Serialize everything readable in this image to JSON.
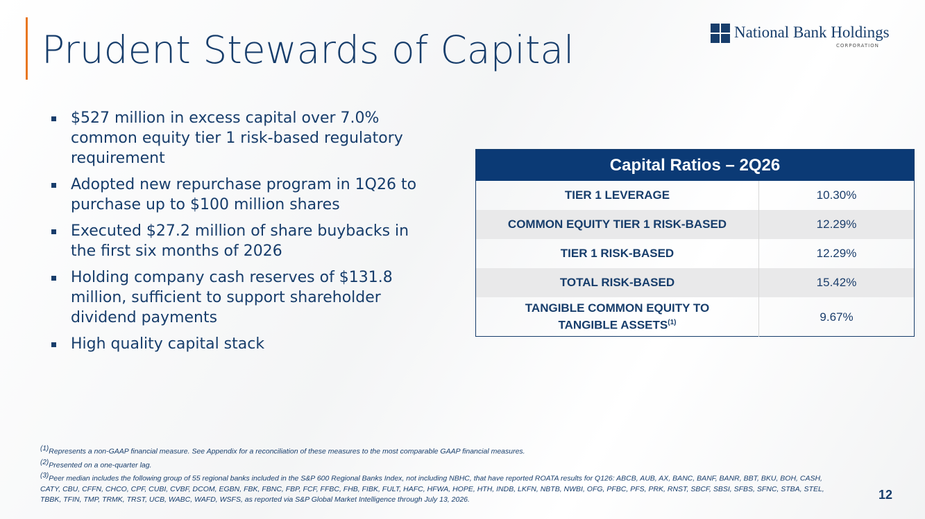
{
  "header": {
    "title": "Prudent Stewards of Capital"
  },
  "logo": {
    "name": "National Bank Holdings",
    "sub": "CORPORATION"
  },
  "bullets": [
    "$527 million in excess capital over 7.0% common equity tier 1 risk-based regulatory requirement",
    "Adopted new repurchase program in 1Q26 to purchase up to $100 million shares",
    "Executed $27.2 million of share buybacks in the first six months of 2026",
    "Holding company cash reserves of $131.8 million, sufficient to support shareholder dividend payments",
    "High quality capital stack"
  ],
  "table": {
    "title": "Capital Ratios – 2Q26",
    "rows": [
      {
        "label": "TIER 1 LEVERAGE",
        "value": "10.30%"
      },
      {
        "label": "COMMON EQUITY TIER 1 RISK-BASED",
        "value": "12.29%"
      },
      {
        "label": "TIER 1 RISK-BASED",
        "value": "12.29%"
      },
      {
        "label": "TOTAL RISK-BASED",
        "value": "15.42%"
      },
      {
        "label": "TANGIBLE COMMON EQUITY TO TANGIBLE ASSETS",
        "note": "(1)",
        "value": "9.67%"
      }
    ]
  },
  "footnotes": [
    {
      "marker": "(1)",
      "text": "Represents a non-GAAP financial measure.  See Appendix for a reconciliation of these measures to the most comparable GAAP financial measures."
    },
    {
      "marker": "(2)",
      "text": "Presented on a one-quarter lag."
    },
    {
      "marker": "(3)",
      "text": "Peer median includes the following group of 55 regional banks included in the S&P 600 Regional Banks Index, not including NBHC, that have reported ROATA results for Q126: ABCB, AUB, AX, BANC, BANF, BANR, BBT, BKU, BOH, CASH, CATY, CBU, CFFN, CHCO, CPF, CUBI, CVBF, DCOM, EGBN, FBK, FBNC, FBP, FCF, FFBC, FHB, FIBK, FULT, HAFC, HFWA, HOPE, HTH, INDB, LKFN, NBTB, NWBI, OFG, PFBC, PFS, PRK, RNST, SBCF, SBSI, SFBS, SFNC, STBA, STEL, TBBK, TFIN, TMP, TRMK, TRST, UCB, WABC, WAFD, WSFS, as reported via S&P Global Market Intelligence through July 13, 2026."
    }
  ],
  "page_number": "12"
}
